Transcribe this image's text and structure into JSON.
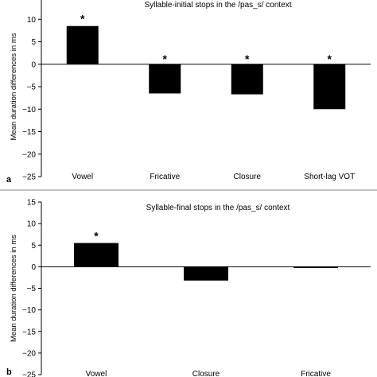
{
  "chart_data": [
    {
      "type": "bar",
      "panel_label": "a",
      "title": "Syllable-initial stops in the /pas_s/ context",
      "ylabel": "Mean duration differences in ms",
      "xlabel": "",
      "categories": [
        "Vowel",
        "Fricative",
        "Closure",
        "Short-lag VOT"
      ],
      "values": [
        8.5,
        -6.5,
        -6.7,
        -10.0
      ],
      "annotations": [
        "*",
        "*",
        "*",
        "*"
      ],
      "ylim": [
        -25,
        15
      ],
      "yticks": [
        15,
        10,
        5,
        0,
        -5,
        -10,
        -15,
        -20,
        -25
      ],
      "ytick_labels": [
        "15",
        "10",
        "5",
        "0",
        "−5",
        "−10",
        "−15",
        "−20",
        "−25"
      ],
      "grid": false,
      "bar_color": "#000000"
    },
    {
      "type": "bar",
      "panel_label": "b",
      "title": "Syllable-final stops in the /pas_s/ context",
      "ylabel": "Mean duration differences in ms",
      "xlabel": "",
      "categories": [
        "Vowel",
        "Closure",
        "Fricative"
      ],
      "values": [
        5.5,
        -3.2,
        -0.3
      ],
      "annotations": [
        "*",
        "",
        ""
      ],
      "ylim": [
        -25,
        15
      ],
      "yticks": [
        15,
        10,
        5,
        0,
        -5,
        -10,
        -15,
        -20,
        -25
      ],
      "ytick_labels": [
        "15",
        "10",
        "5",
        "0",
        "−5",
        "−10",
        "−15",
        "−20",
        "−25"
      ],
      "grid": false,
      "bar_color": "#000000"
    }
  ]
}
